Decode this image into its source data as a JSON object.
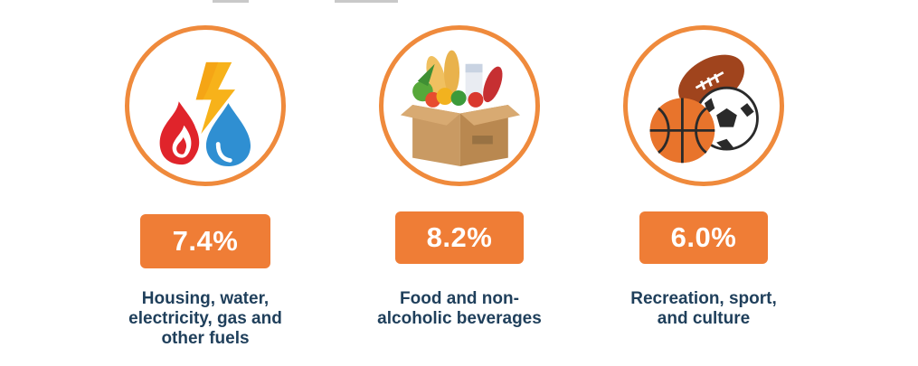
{
  "colors": {
    "accent": "#ef7d36",
    "circle_border": "#ef8a3c",
    "label_text": "#1f3f5b"
  },
  "items": [
    {
      "icon": "fire-bolt-water-icon",
      "value": "7.4%",
      "label_lines": [
        "Housing, water,",
        "electricity,  gas and",
        "other fuels"
      ]
    },
    {
      "icon": "grocery-box-icon",
      "value": "8.2%",
      "label_lines": [
        "Food and non-",
        "alcoholic beverages"
      ]
    },
    {
      "icon": "sports-balls-icon",
      "value": "6.0%",
      "label_lines": [
        "Recreation, sport,",
        "and culture"
      ]
    }
  ]
}
